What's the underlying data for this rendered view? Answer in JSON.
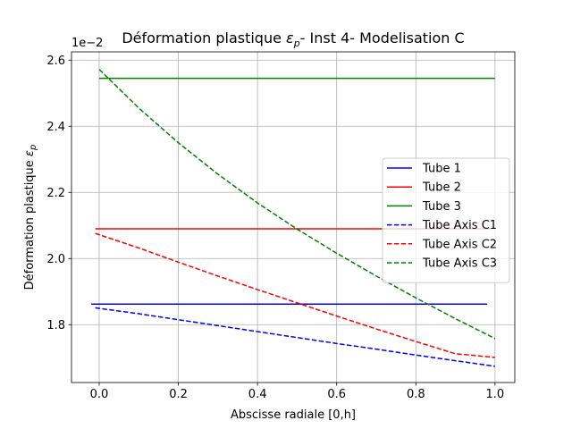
{
  "chart_data": {
    "type": "line",
    "title": "Déformation plastique",
    "title_symbol": "ε",
    "title_symbol_sub": "p",
    "title_suffix": "- Inst 4- Modelisation C",
    "xlabel": "Abscisse radiale [0,h]",
    "ylabel": "Déformation plastique",
    "ylabel_symbol": "ε",
    "ylabel_symbol_sub": "p",
    "y_offset_label": "1e−2",
    "xlim": [
      -0.07,
      1.05
    ],
    "ylim": [
      1.625,
      2.625
    ],
    "y_scale_factor": 0.01,
    "x_ticks": [
      0.0,
      0.2,
      0.4,
      0.6,
      0.8,
      1.0
    ],
    "x_tick_labels": [
      "0.0",
      "0.2",
      "0.4",
      "0.6",
      "0.8",
      "1.0"
    ],
    "y_ticks": [
      1.8,
      2.0,
      2.2,
      2.4,
      2.6
    ],
    "y_tick_labels": [
      "1.8",
      "2.0",
      "2.2",
      "2.4",
      "2.6"
    ],
    "grid": true,
    "legend_placement": "center-right",
    "series": [
      {
        "name": "Tube 1",
        "color": "#0000ff",
        "dash": "solid",
        "x": [
          -0.02,
          0.98
        ],
        "y": [
          1.862,
          1.862
        ]
      },
      {
        "name": "Tube 2",
        "color": "#ff0000",
        "dash": "solid",
        "x": [
          -0.01,
          0.99
        ],
        "y": [
          2.09,
          2.09
        ]
      },
      {
        "name": "Tube 3",
        "color": "#008000",
        "dash": "solid",
        "x": [
          0.0,
          1.0
        ],
        "y": [
          2.545,
          2.545
        ]
      },
      {
        "name": "Tube Axis C1",
        "color": "#0000ff",
        "dash": "dashed",
        "x": [
          -0.01,
          0.1,
          0.2,
          0.3,
          0.4,
          0.5,
          0.6,
          0.7,
          0.8,
          0.9,
          1.0
        ],
        "y": [
          1.851,
          1.833,
          1.815,
          1.797,
          1.779,
          1.761,
          1.743,
          1.726,
          1.708,
          1.691,
          1.674
        ]
      },
      {
        "name": "Tube Axis C2",
        "color": "#ff0000",
        "dash": "dashed",
        "x": [
          -0.01,
          0.1,
          0.2,
          0.3,
          0.4,
          0.5,
          0.6,
          0.7,
          0.8,
          0.9,
          1.0
        ],
        "y": [
          2.076,
          2.032,
          1.989,
          1.947,
          1.906,
          1.866,
          1.826,
          1.787,
          1.749,
          1.712,
          1.701
        ]
      },
      {
        "name": "Tube Axis C3",
        "color": "#008000",
        "dash": "dashed",
        "x": [
          0.0,
          0.1,
          0.2,
          0.3,
          0.4,
          0.5,
          0.6,
          0.7,
          0.8,
          0.9,
          1.0
        ],
        "y": [
          2.572,
          2.455,
          2.35,
          2.255,
          2.168,
          2.089,
          2.016,
          1.947,
          1.881,
          1.818,
          1.758
        ]
      }
    ]
  }
}
